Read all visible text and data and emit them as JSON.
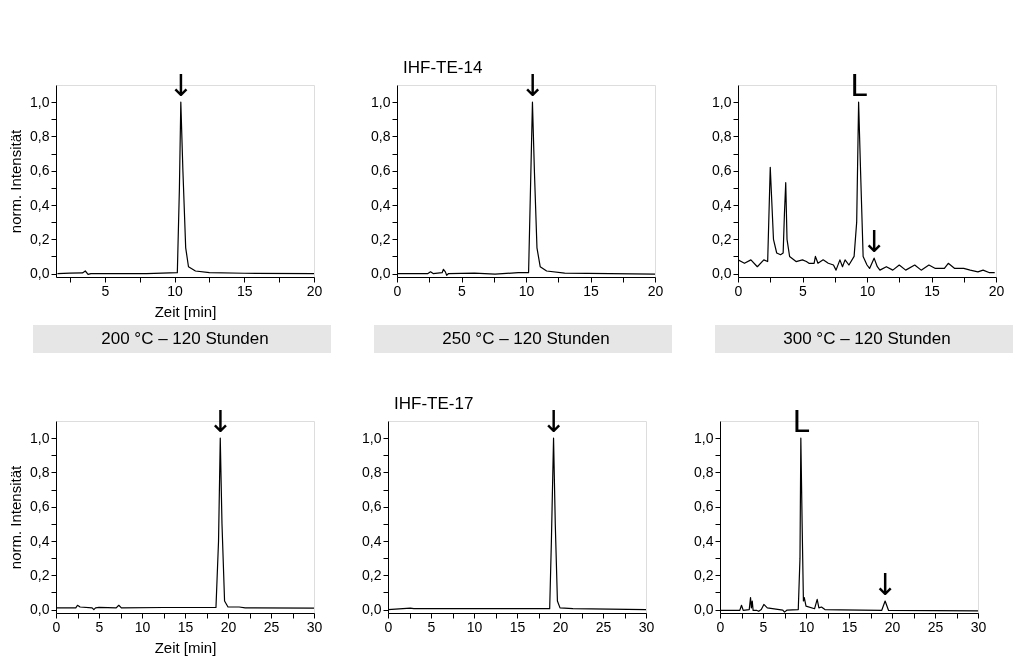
{
  "chart_data": [
    {
      "type": "line",
      "xlabel": "Zeit [min]",
      "ylabel": "norm. Intensität",
      "annotations": [
        "200 °C – 120 Stunden",
        {
          "text": "↓",
          "x": 10.45,
          "y": 1.0
        }
      ],
      "xlim": [
        1.5,
        20
      ],
      "ylim": [
        -0.02,
        1.1
      ],
      "xticks": [
        {
          "value": 2.5,
          "label": null
        },
        5,
        {
          "value": 7.5,
          "label": null
        },
        10,
        {
          "value": 12.5,
          "label": null
        },
        15,
        {
          "value": 17.5,
          "label": null
        },
        20
      ],
      "yticks": [
        {
          "value": 0,
          "label": "0,0"
        },
        {
          "value": 0.1,
          "label": null
        },
        {
          "value": 0.2,
          "label": "0,2"
        },
        {
          "value": 0.3,
          "label": null
        },
        {
          "value": 0.4,
          "label": "0,4"
        },
        {
          "value": 0.5,
          "label": null
        },
        {
          "value": 0.6,
          "label": "0,6"
        },
        {
          "value": 0.7,
          "label": null
        },
        {
          "value": 0.8,
          "label": "0,8"
        },
        {
          "value": 0.9,
          "label": null
        },
        {
          "value": 1.0,
          "label": "1,0"
        }
      ],
      "grid": false,
      "series": [
        {
          "color": "#000000",
          "x": [
            1.6,
            2.5,
            3.4,
            3.6,
            3.8,
            4.0,
            8.0,
            10.2,
            10.35,
            10.45,
            10.6,
            10.8,
            11.0,
            11.5,
            12.5,
            15.0,
            20.0
          ],
          "values": [
            0.0,
            0.003,
            0.004,
            0.015,
            -0.005,
            0.0,
            0.0,
            0.005,
            0.5,
            1.0,
            0.6,
            0.15,
            0.04,
            0.015,
            0.005,
            0.002,
            0.0
          ]
        }
      ]
    },
    {
      "type": "line",
      "title": "IHF-TE-14",
      "annotations": [
        "250 °C – 120 Stunden",
        {
          "text": "↓",
          "x": 10.5,
          "y": 1.0
        }
      ],
      "xlim": [
        0,
        20
      ],
      "ylim": [
        -0.02,
        1.1
      ],
      "xticks": [
        0,
        {
          "value": 2.5,
          "label": null
        },
        5,
        {
          "value": 7.5,
          "label": null
        },
        10,
        {
          "value": 12.5,
          "label": null
        },
        15,
        {
          "value": 17.5,
          "label": null
        },
        20
      ],
      "yticks": [
        {
          "value": 0,
          "label": "0,0"
        },
        {
          "value": 0.1,
          "label": null
        },
        {
          "value": 0.2,
          "label": "0,2"
        },
        {
          "value": 0.3,
          "label": null
        },
        {
          "value": 0.4,
          "label": "0,4"
        },
        {
          "value": 0.5,
          "label": null
        },
        {
          "value": 0.6,
          "label": "0,6"
        },
        {
          "value": 0.7,
          "label": null
        },
        {
          "value": 0.8,
          "label": "0,8"
        },
        {
          "value": 0.9,
          "label": null
        },
        {
          "value": 1.0,
          "label": "1,0"
        }
      ],
      "grid": false,
      "series": [
        {
          "color": "#000000",
          "x": [
            0.0,
            2.4,
            2.6,
            2.8,
            3.5,
            3.6,
            3.75,
            3.85,
            4.0,
            6.0,
            7.6,
            9.4,
            10.2,
            10.35,
            10.5,
            10.65,
            10.85,
            11.1,
            11.6,
            13.0,
            20.0
          ],
          "values": [
            0.0,
            0.0,
            0.01,
            0.0,
            0.005,
            0.025,
            0.01,
            -0.01,
            0.0,
            0.003,
            -0.003,
            0.005,
            0.005,
            0.5,
            1.0,
            0.6,
            0.15,
            0.04,
            0.015,
            0.003,
            -0.003
          ]
        }
      ]
    },
    {
      "type": "line",
      "annotations": [
        "300 °C – 120 Stunden",
        {
          "text": "L",
          "x": 9.35,
          "y": 1.0
        },
        {
          "text": "↓",
          "x": 10.55,
          "y": 0.09
        }
      ],
      "xlim": [
        0,
        20
      ],
      "ylim": [
        -0.02,
        1.1
      ],
      "xticks": [
        0,
        {
          "value": 2.5,
          "label": null
        },
        5,
        {
          "value": 7.5,
          "label": null
        },
        10,
        {
          "value": 12.5,
          "label": null
        },
        15,
        {
          "value": 17.5,
          "label": null
        },
        20
      ],
      "yticks": [
        {
          "value": 0,
          "label": "0,0"
        },
        {
          "value": 0.1,
          "label": null
        },
        {
          "value": 0.2,
          "label": "0,2"
        },
        {
          "value": 0.3,
          "label": null
        },
        {
          "value": 0.4,
          "label": "0,4"
        },
        {
          "value": 0.5,
          "label": null
        },
        {
          "value": 0.6,
          "label": "0,6"
        },
        {
          "value": 0.7,
          "label": null
        },
        {
          "value": 0.8,
          "label": "0,8"
        },
        {
          "value": 0.9,
          "label": null
        },
        {
          "value": 1.0,
          "label": "1,0"
        }
      ],
      "grid": false,
      "series": [
        {
          "color": "#000000",
          "x": [
            0.0,
            0.5,
            1.0,
            1.5,
            2.0,
            2.3,
            2.5,
            2.75,
            3.0,
            3.3,
            3.5,
            3.6,
            3.7,
            3.8,
            4.0,
            4.5,
            5.0,
            5.3,
            5.5,
            5.9,
            6.0,
            6.2,
            6.6,
            7.0,
            7.4,
            7.6,
            7.9,
            8.1,
            8.3,
            8.6,
            9.0,
            9.2,
            9.35,
            9.5,
            9.7,
            10.0,
            10.2,
            10.55,
            10.8,
            11.0,
            11.5,
            12.0,
            12.5,
            13.0,
            13.7,
            14.2,
            14.8,
            15.3,
            16.0,
            16.3,
            16.8,
            17.5,
            18.0,
            18.6,
            19.0,
            19.5,
            19.9
          ],
          "values": [
            0.08,
            0.06,
            0.08,
            0.04,
            0.08,
            0.07,
            0.62,
            0.2,
            0.12,
            0.11,
            0.12,
            0.35,
            0.53,
            0.2,
            0.1,
            0.07,
            0.08,
            0.07,
            0.06,
            0.06,
            0.1,
            0.06,
            0.08,
            0.06,
            0.05,
            0.02,
            0.08,
            0.04,
            0.08,
            0.05,
            0.1,
            0.3,
            1.0,
            0.6,
            0.1,
            0.05,
            0.03,
            0.09,
            0.04,
            0.02,
            0.04,
            0.02,
            0.05,
            0.02,
            0.05,
            0.02,
            0.05,
            0.03,
            0.03,
            0.06,
            0.03,
            0.03,
            0.02,
            0.01,
            0.02,
            0.005,
            0.005
          ]
        }
      ]
    },
    {
      "type": "line",
      "xlabel": "Zeit [min]",
      "ylabel": "norm. Intensität",
      "annotations": [
        {
          "text": "↓",
          "x": 19.1,
          "y": 1.0
        }
      ],
      "xlim": [
        0,
        30
      ],
      "ylim": [
        -0.02,
        1.1
      ],
      "xticks": [
        0,
        {
          "value": 2.5,
          "label": null
        },
        5,
        {
          "value": 7.5,
          "label": null
        },
        10,
        {
          "value": 12.5,
          "label": null
        },
        15,
        {
          "value": 17.5,
          "label": null
        },
        20,
        {
          "value": 22.5,
          "label": null
        },
        25,
        {
          "value": 27.5,
          "label": null
        },
        30
      ],
      "yticks": [
        {
          "value": 0,
          "label": "0,0"
        },
        {
          "value": 0.1,
          "label": null
        },
        {
          "value": 0.2,
          "label": "0,2"
        },
        {
          "value": 0.3,
          "label": null
        },
        {
          "value": 0.4,
          "label": "0,4"
        },
        {
          "value": 0.5,
          "label": null
        },
        {
          "value": 0.6,
          "label": "0,6"
        },
        {
          "value": 0.7,
          "label": null
        },
        {
          "value": 0.8,
          "label": "0,8"
        },
        {
          "value": 0.9,
          "label": null
        },
        {
          "value": 1.0,
          "label": "1,0"
        }
      ],
      "grid": false,
      "series": [
        {
          "color": "#000000",
          "x": [
            0.0,
            2.3,
            2.5,
            2.8,
            4.2,
            4.4,
            4.6,
            5.0,
            7.0,
            7.3,
            7.6,
            12.5,
            18.6,
            18.9,
            19.1,
            19.3,
            19.6,
            20.0,
            21.3,
            22.0,
            30.0
          ],
          "values": [
            0.01,
            0.01,
            0.025,
            0.015,
            0.01,
            0.0,
            0.01,
            0.013,
            0.01,
            0.025,
            0.01,
            0.012,
            0.012,
            0.4,
            1.0,
            0.5,
            0.05,
            0.015,
            0.015,
            0.01,
            0.008
          ]
        }
      ]
    },
    {
      "type": "line",
      "title": "IHF-TE-17",
      "annotations": [
        {
          "text": "↓",
          "x": 19.25,
          "y": 1.0
        }
      ],
      "xlim": [
        0,
        30
      ],
      "ylim": [
        -0.02,
        1.1
      ],
      "xticks": [
        0,
        {
          "value": 2.5,
          "label": null
        },
        5,
        {
          "value": 7.5,
          "label": null
        },
        10,
        {
          "value": 12.5,
          "label": null
        },
        15,
        {
          "value": 17.5,
          "label": null
        },
        20,
        {
          "value": 22.5,
          "label": null
        },
        25,
        {
          "value": 27.5,
          "label": null
        },
        30
      ],
      "yticks": [
        {
          "value": 0,
          "label": "0,0"
        },
        {
          "value": 0.1,
          "label": null
        },
        {
          "value": 0.2,
          "label": "0,2"
        },
        {
          "value": 0.3,
          "label": null
        },
        {
          "value": 0.4,
          "label": "0,4"
        },
        {
          "value": 0.5,
          "label": null
        },
        {
          "value": 0.6,
          "label": "0,6"
        },
        {
          "value": 0.7,
          "label": null
        },
        {
          "value": 0.8,
          "label": "0,8"
        },
        {
          "value": 0.9,
          "label": null
        },
        {
          "value": 1.0,
          "label": "1,0"
        }
      ],
      "grid": false,
      "series": [
        {
          "color": "#000000",
          "x": [
            0.0,
            2.6,
            3.0,
            5.0,
            9.5,
            18.8,
            19.0,
            19.25,
            19.45,
            19.7,
            20.0,
            21.5,
            30.0
          ],
          "values": [
            0.0,
            0.008,
            0.005,
            0.005,
            0.005,
            0.005,
            0.4,
            1.0,
            0.5,
            0.05,
            0.01,
            0.006,
            0.0
          ]
        }
      ]
    },
    {
      "type": "line",
      "annotations": [
        {
          "text": "L",
          "x": 9.4,
          "y": 1.0
        },
        {
          "text": "↓",
          "x": 19.2,
          "y": 0.05
        }
      ],
      "xlim": [
        0,
        30
      ],
      "ylim": [
        -0.02,
        1.1
      ],
      "xticks": [
        0,
        {
          "value": 2.5,
          "label": null
        },
        5,
        {
          "value": 7.5,
          "label": null
        },
        10,
        {
          "value": 12.5,
          "label": null
        },
        15,
        {
          "value": 17.5,
          "label": null
        },
        20,
        {
          "value": 22.5,
          "label": null
        },
        25,
        {
          "value": 27.5,
          "label": null
        },
        30
      ],
      "yticks": [
        {
          "value": 0,
          "label": "0,0"
        },
        {
          "value": 0.1,
          "label": null
        },
        {
          "value": 0.2,
          "label": "0,2"
        },
        {
          "value": 0.3,
          "label": null
        },
        {
          "value": 0.4,
          "label": "0,4"
        },
        {
          "value": 0.5,
          "label": null
        },
        {
          "value": 0.6,
          "label": "0,6"
        },
        {
          "value": 0.7,
          "label": null
        },
        {
          "value": 0.8,
          "label": "0,8"
        },
        {
          "value": 0.9,
          "label": null
        },
        {
          "value": 1.0,
          "label": "1,0"
        }
      ],
      "grid": false,
      "series": [
        {
          "color": "#000000",
          "x": [
            0.0,
            2.3,
            2.5,
            2.7,
            3.4,
            3.55,
            3.65,
            3.75,
            3.85,
            4.3,
            4.5,
            4.8,
            5.1,
            5.5,
            7.3,
            7.5,
            7.8,
            9.1,
            9.3,
            9.4,
            9.55,
            9.7,
            9.8,
            10.0,
            11.0,
            11.3,
            11.5,
            11.8,
            12.2,
            14.0,
            18.8,
            19.2,
            19.6,
            30.0
          ],
          "values": [
            -0.005,
            -0.005,
            0.025,
            -0.005,
            0.0,
            0.07,
            0.01,
            0.05,
            -0.005,
            -0.005,
            -0.01,
            0.0,
            0.03,
            0.01,
            -0.003,
            -0.015,
            -0.003,
            0.0,
            0.3,
            1.0,
            0.5,
            0.05,
            0.07,
            0.02,
            0.005,
            0.06,
            0.01,
            0.015,
            0.0,
            -0.002,
            -0.005,
            0.05,
            -0.005,
            -0.008
          ]
        }
      ]
    }
  ]
}
